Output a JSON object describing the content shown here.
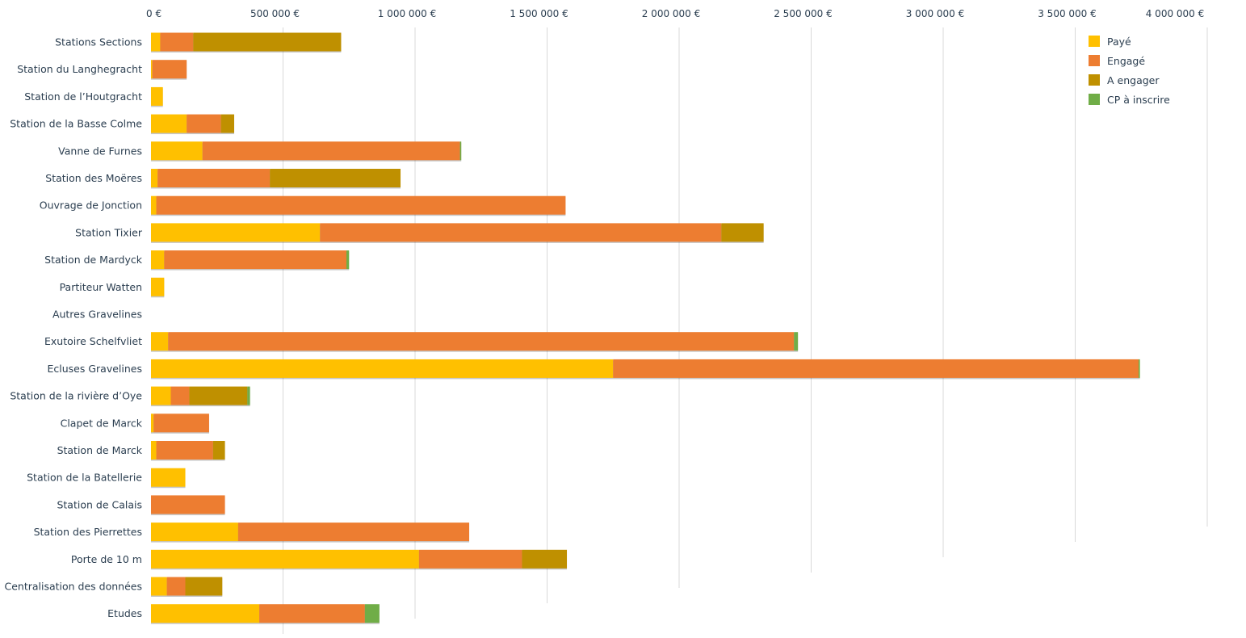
{
  "chart_data": {
    "type": "bar",
    "orientation": "horizontal",
    "stacked": true,
    "categories": [
      "Stations Sections",
      "Station du Langhegracht",
      "Station de l’Houtgracht",
      "Station de la Basse Colme",
      "Vanne de Furnes",
      "Station des Moëres",
      "Ouvrage de Jonction",
      "Station Tixier",
      "Station de Mardyck",
      "Partiteur Watten",
      "Autres Gravelines",
      "Exutoire Schelfvliet",
      "Ecluses Gravelines",
      "Station de la rivière d’Oye",
      "Clapet de Marck",
      "Station de Marck",
      "Station de la Batellerie",
      "Station de Calais",
      "Station des Pierrettes",
      "Porte de 10 m",
      "Centralisation des données",
      "Etudes"
    ],
    "series": [
      {
        "name": "Payé",
        "color": "#ffc000",
        "values": [
          35000,
          5000,
          45000,
          135000,
          195000,
          25000,
          20000,
          640000,
          50000,
          50000,
          0,
          65000,
          1750000,
          75000,
          10000,
          20000,
          130000,
          0,
          330000,
          1015000,
          60000,
          410000
        ]
      },
      {
        "name": "Engagé",
        "color": "#ed7d31",
        "values": [
          125000,
          130000,
          0,
          130000,
          975000,
          425000,
          1550000,
          1520000,
          690000,
          0,
          0,
          2370000,
          1990000,
          70000,
          210000,
          215000,
          0,
          280000,
          875000,
          390000,
          70000,
          400000
        ]
      },
      {
        "name": "A engager",
        "color": "#bf9000",
        "values": [
          560000,
          0,
          0,
          50000,
          0,
          495000,
          0,
          160000,
          0,
          0,
          0,
          0,
          0,
          220000,
          0,
          45000,
          0,
          0,
          0,
          170000,
          140000,
          0
        ]
      },
      {
        "name": "CP à inscrire",
        "color": "#70ad47",
        "values": [
          0,
          0,
          0,
          0,
          5000,
          0,
          0,
          0,
          10000,
          0,
          0,
          15000,
          5000,
          10000,
          0,
          0,
          0,
          0,
          0,
          0,
          0,
          55000
        ]
      }
    ],
    "x_ticks": [
      "0 €",
      "500 000 €",
      "1 000 000 €",
      "1 500 000 €",
      "2 000 000 €",
      "2 500 000 €",
      "3 000 000 €",
      "3 500 000 €",
      "4 000 000 €"
    ],
    "xlim": [
      0,
      4000000
    ],
    "x_axis_position": "top",
    "grid": true,
    "legend_position": "top-right",
    "title": "",
    "xlabel": "",
    "ylabel": ""
  }
}
